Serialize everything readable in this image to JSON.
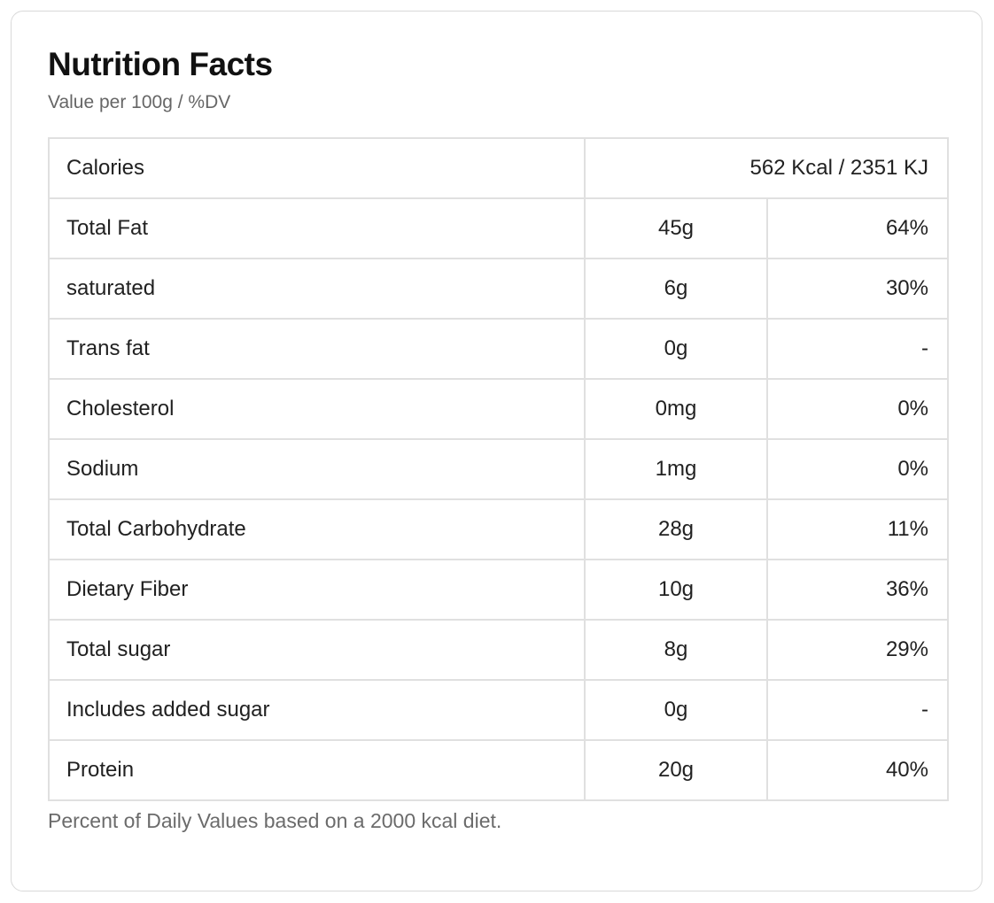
{
  "page": {
    "title": "Nutrition Facts",
    "subtitle": "Value per 100g / %DV",
    "footnote": "Percent of Daily Values based on a 2000 kcal diet."
  },
  "table": {
    "calories": {
      "label": "Calories",
      "value": "562 Kcal / 2351 KJ"
    },
    "rows": [
      {
        "label": "Total Fat",
        "amount": "45g",
        "dv": "64%"
      },
      {
        "label": "saturated",
        "amount": "6g",
        "dv": "30%"
      },
      {
        "label": "Trans fat",
        "amount": "0g",
        "dv": "-"
      },
      {
        "label": "Cholesterol",
        "amount": "0mg",
        "dv": "0%"
      },
      {
        "label": "Sodium",
        "amount": "1mg",
        "dv": "0%"
      },
      {
        "label": "Total Carbohydrate",
        "amount": "28g",
        "dv": "11%"
      },
      {
        "label": "Dietary Fiber",
        "amount": "10g",
        "dv": "36%"
      },
      {
        "label": "Total sugar",
        "amount": "8g",
        "dv": "29%"
      },
      {
        "label": "Includes added sugar",
        "amount": "0g",
        "dv": "-"
      },
      {
        "label": "Protein",
        "amount": "20g",
        "dv": "40%"
      }
    ]
  },
  "colors": {
    "table_border": "#e0e0e0",
    "card_border": "#d9d9d9",
    "text": "#212121",
    "muted_text": "#666666"
  }
}
